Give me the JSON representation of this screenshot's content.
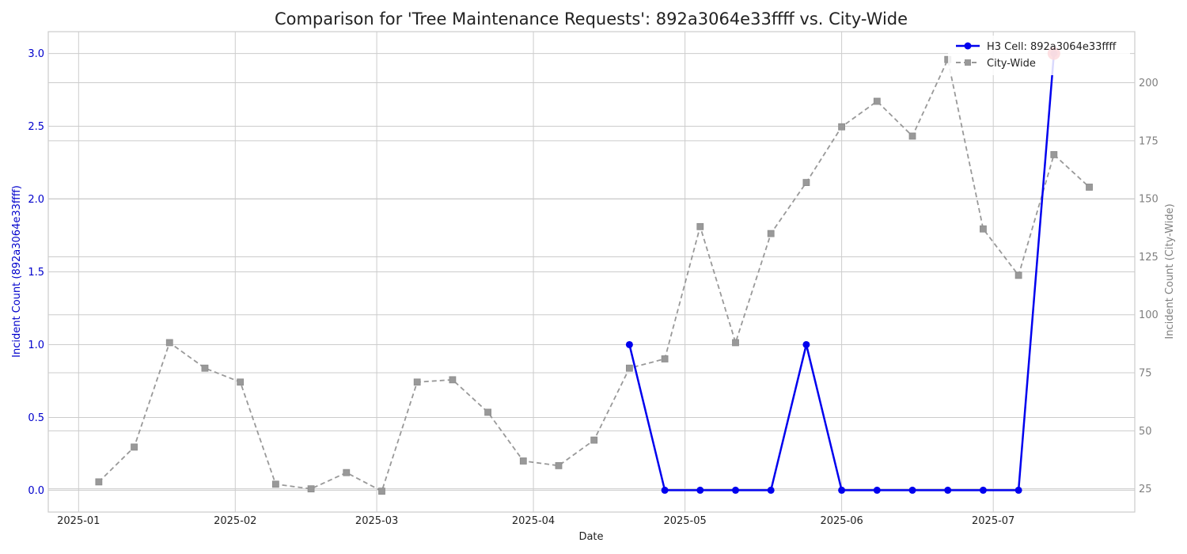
{
  "chart_data": {
    "type": "line",
    "title": "Comparison for 'Tree Maintenance Requests': 892a3064e33ffff vs. City-Wide",
    "xlabel": "Date",
    "ylabel_left": "Incident Count (892a3064e33ffff)",
    "ylabel_right": "Incident Count (City-Wide)",
    "x_tick_labels": [
      "2025-01",
      "2025-02",
      "2025-03",
      "2025-04",
      "2025-05",
      "2025-06",
      "2025-07"
    ],
    "x_tick_dates": [
      "2025-01-01",
      "2025-02-01",
      "2025-03-01",
      "2025-04-01",
      "2025-05-01",
      "2025-06-01",
      "2025-07-01"
    ],
    "xlim": [
      "2024-12-26",
      "2025-07-29"
    ],
    "ylim_left": [
      -0.15,
      3.15
    ],
    "ylim_right": [
      15,
      222
    ],
    "y_left_ticks": [
      "0.0",
      "0.5",
      "1.0",
      "1.5",
      "2.0",
      "2.5",
      "3.0"
    ],
    "y_right_ticks": [
      "25",
      "50",
      "75",
      "100",
      "125",
      "150",
      "175",
      "200"
    ],
    "grid": true,
    "legend_position": "top-right",
    "colors": {
      "h3": "#0000ee",
      "city": "#999999",
      "highlight": "#ee1122",
      "left_axis": "#0000cc",
      "right_axis": "#808080"
    },
    "series": [
      {
        "name": "H3 Cell: 892a3064e33ffff",
        "axis": "left",
        "style": "solid",
        "marker": "circle",
        "x": [
          "2025-04-20",
          "2025-04-27",
          "2025-05-04",
          "2025-05-11",
          "2025-05-18",
          "2025-05-25",
          "2025-06-01",
          "2025-06-08",
          "2025-06-15",
          "2025-06-22",
          "2025-06-29",
          "2025-07-06",
          "2025-07-13"
        ],
        "values": [
          1,
          0,
          0,
          0,
          0,
          1,
          0,
          0,
          0,
          0,
          0,
          0,
          3
        ]
      },
      {
        "name": "City-Wide",
        "axis": "right",
        "style": "dashed",
        "marker": "square",
        "x": [
          "2025-01-05",
          "2025-01-12",
          "2025-01-19",
          "2025-01-26",
          "2025-02-02",
          "2025-02-09",
          "2025-02-16",
          "2025-02-23",
          "2025-03-02",
          "2025-03-09",
          "2025-03-16",
          "2025-03-23",
          "2025-03-30",
          "2025-04-06",
          "2025-04-13",
          "2025-04-20",
          "2025-04-27",
          "2025-05-04",
          "2025-05-11",
          "2025-05-18",
          "2025-05-25",
          "2025-06-01",
          "2025-06-08",
          "2025-06-15",
          "2025-06-22",
          "2025-06-29",
          "2025-07-06",
          "2025-07-13",
          "2025-07-20"
        ],
        "values": [
          28,
          43,
          88,
          77,
          71,
          27,
          25,
          32,
          24,
          71,
          72,
          58,
          37,
          35,
          46,
          77,
          81,
          138,
          88,
          135,
          157,
          181,
          192,
          177,
          210,
          137,
          117,
          169,
          155
        ]
      }
    ],
    "highlight_point": {
      "x": "2025-07-13",
      "value": 3
    }
  }
}
